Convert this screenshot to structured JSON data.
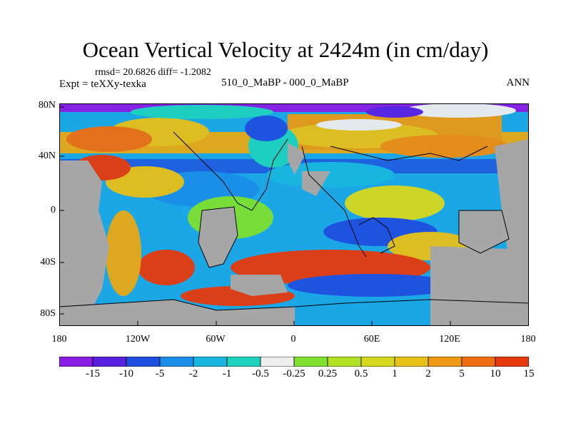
{
  "title": "Ocean Vertical Velocity at 2424m (in cm/day)",
  "stats": "rmsd= 20.6826 diff= -1.2082",
  "experiment": "Expt = teXXy-texka",
  "cases": "510_0_MaBP - 000_0_MaBP",
  "season": "ANN",
  "map": {
    "lat_ticks": [
      "80N",
      "40N",
      "0",
      "40S",
      "80S"
    ],
    "lon_ticks": [
      "180",
      "120W",
      "60W",
      "0",
      "60E",
      "120E",
      "180"
    ],
    "land_color": "#a6a6a6",
    "projection": "cylindrical equidistant"
  },
  "colorbar": {
    "labels": [
      "-15",
      "-10",
      "-5",
      "-2",
      "-1",
      "-0.5",
      "-0.25",
      "0.25",
      "0.5",
      "1",
      "2",
      "5",
      "10",
      "15"
    ],
    "colors": [
      "#8a1de3",
      "#5a20e0",
      "#1f4fe0",
      "#1a8ee8",
      "#18b6e0",
      "#1ed2c0",
      "#eeeeee",
      "#7fe030",
      "#b4e024",
      "#d6d81e",
      "#e8c018",
      "#ee9814",
      "#ee6e10",
      "#e63a0c"
    ]
  }
}
